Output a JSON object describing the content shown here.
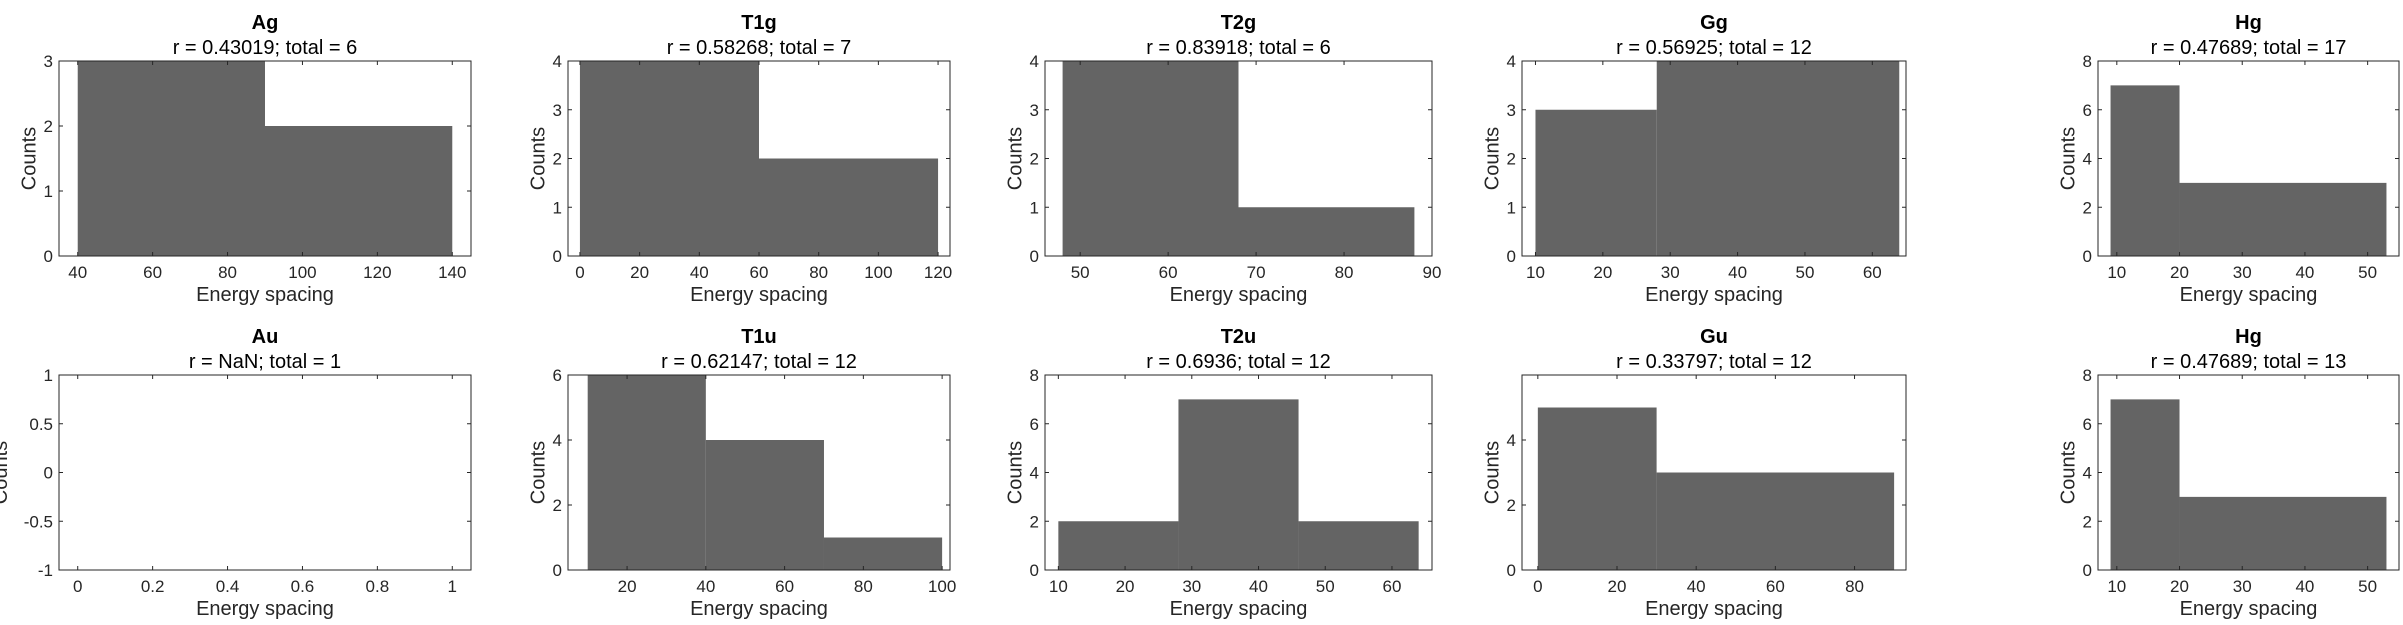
{
  "chart_data": [
    {
      "type": "bar",
      "title": "Ag",
      "subtitle": "r = 0.43019; total = 6",
      "xlabel": "Energy spacing",
      "ylabel": "Counts",
      "xlim": [
        35,
        145
      ],
      "ylim": [
        0,
        3
      ],
      "xticks": [
        40,
        60,
        80,
        100,
        120,
        140
      ],
      "yticks": [
        0,
        1,
        2,
        3
      ],
      "bins": [
        {
          "x0": 40,
          "x1": 90,
          "count": 3
        },
        {
          "x0": 90,
          "x1": 140,
          "count": 2
        }
      ]
    },
    {
      "type": "bar",
      "title": "T1g",
      "subtitle": "r = 0.58268; total = 7",
      "xlabel": "Energy spacing",
      "ylabel": "Counts",
      "xlim": [
        -4,
        124
      ],
      "ylim": [
        0,
        4
      ],
      "xticks": [
        0,
        20,
        40,
        60,
        80,
        100,
        120
      ],
      "yticks": [
        0,
        1,
        2,
        3,
        4
      ],
      "bins": [
        {
          "x0": 0,
          "x1": 60,
          "count": 4
        },
        {
          "x0": 60,
          "x1": 120,
          "count": 2
        }
      ]
    },
    {
      "type": "bar",
      "title": "T2g",
      "subtitle": "r = 0.83918; total = 6",
      "xlabel": "Energy spacing",
      "ylabel": "Counts",
      "xlim": [
        46,
        90
      ],
      "ylim": [
        0,
        4
      ],
      "xticks": [
        50,
        60,
        70,
        80,
        90
      ],
      "yticks": [
        0,
        1,
        2,
        3,
        4
      ],
      "bins": [
        {
          "x0": 48,
          "x1": 68,
          "count": 4
        },
        {
          "x0": 68,
          "x1": 88,
          "count": 1
        }
      ]
    },
    {
      "type": "bar",
      "title": "Gg",
      "subtitle": "r = 0.56925; total = 12",
      "xlabel": "Energy spacing",
      "ylabel": "Counts",
      "xlim": [
        8,
        65
      ],
      "ylim": [
        0,
        4
      ],
      "xticks": [
        10,
        20,
        30,
        40,
        50,
        60
      ],
      "yticks": [
        0,
        1,
        2,
        3,
        4
      ],
      "bins": [
        {
          "x0": 10,
          "x1": 28,
          "count": 3
        },
        {
          "x0": 28,
          "x1": 64,
          "count": 4
        }
      ]
    },
    {
      "type": "bar",
      "title": "Hg",
      "subtitle": "r = 0.47689; total = 17",
      "xlabel": "Energy spacing",
      "ylabel": "Counts",
      "xlim": [
        7,
        55
      ],
      "ylim": [
        0,
        8
      ],
      "xticks": [
        10,
        20,
        30,
        40,
        50
      ],
      "yticks": [
        0,
        2,
        4,
        6,
        8
      ],
      "bins": [
        {
          "x0": 9,
          "x1": 20,
          "count": 7
        },
        {
          "x0": 20,
          "x1": 53,
          "count": 3
        }
      ]
    },
    {
      "type": "bar",
      "title": "Au",
      "subtitle": "r = NaN; total = 1",
      "xlabel": "Energy spacing",
      "ylabel": "Counts",
      "xlim": [
        -0.05,
        1.05
      ],
      "ylim": [
        -1,
        1
      ],
      "xticks": [
        0,
        0.2,
        0.4,
        0.6,
        0.8,
        1
      ],
      "yticks": [
        -1,
        -0.5,
        0,
        0.5,
        1
      ],
      "bins": []
    },
    {
      "type": "bar",
      "title": "T1u",
      "subtitle": "r = 0.62147; total = 12",
      "xlabel": "Energy spacing",
      "ylabel": "Counts",
      "xlim": [
        5,
        102
      ],
      "ylim": [
        0,
        6
      ],
      "xticks": [
        20,
        40,
        60,
        80,
        100
      ],
      "yticks": [
        0,
        2,
        4,
        6
      ],
      "bins": [
        {
          "x0": 10,
          "x1": 40,
          "count": 6
        },
        {
          "x0": 40,
          "x1": 70,
          "count": 4
        },
        {
          "x0": 70,
          "x1": 100,
          "count": 1
        }
      ]
    },
    {
      "type": "bar",
      "title": "T2u",
      "subtitle": "r = 0.6936; total = 12",
      "xlabel": "Energy spacing",
      "ylabel": "Counts",
      "xlim": [
        8,
        66
      ],
      "ylim": [
        0,
        8
      ],
      "xticks": [
        10,
        20,
        30,
        40,
        50,
        60
      ],
      "yticks": [
        0,
        2,
        4,
        6,
        8
      ],
      "bins": [
        {
          "x0": 10,
          "x1": 28,
          "count": 2
        },
        {
          "x0": 28,
          "x1": 46,
          "count": 7
        },
        {
          "x0": 46,
          "x1": 64,
          "count": 2
        }
      ]
    },
    {
      "type": "bar",
      "title": "Gu",
      "subtitle": "r = 0.33797; total = 12",
      "xlabel": "Energy spacing",
      "ylabel": "Counts",
      "xlim": [
        -4,
        93
      ],
      "ylim": [
        0,
        6
      ],
      "xticks": [
        0,
        20,
        40,
        60,
        80
      ],
      "yticks": [
        0,
        2,
        4
      ],
      "bins": [
        {
          "x0": 0,
          "x1": 30,
          "count": 5
        },
        {
          "x0": 30,
          "x1": 90,
          "count": 3
        }
      ]
    },
    {
      "type": "bar",
      "title": "Hg",
      "subtitle": "r = 0.47689; total = 13",
      "xlabel": "Energy spacing",
      "ylabel": "Counts",
      "xlim": [
        7,
        55
      ],
      "ylim": [
        0,
        8
      ],
      "xticks": [
        10,
        20,
        30,
        40,
        50
      ],
      "yticks": [
        0,
        2,
        4,
        6,
        8
      ],
      "bins": [
        {
          "x0": 9,
          "x1": 20,
          "count": 7
        },
        {
          "x0": 20,
          "x1": 53,
          "count": 3
        }
      ]
    }
  ]
}
